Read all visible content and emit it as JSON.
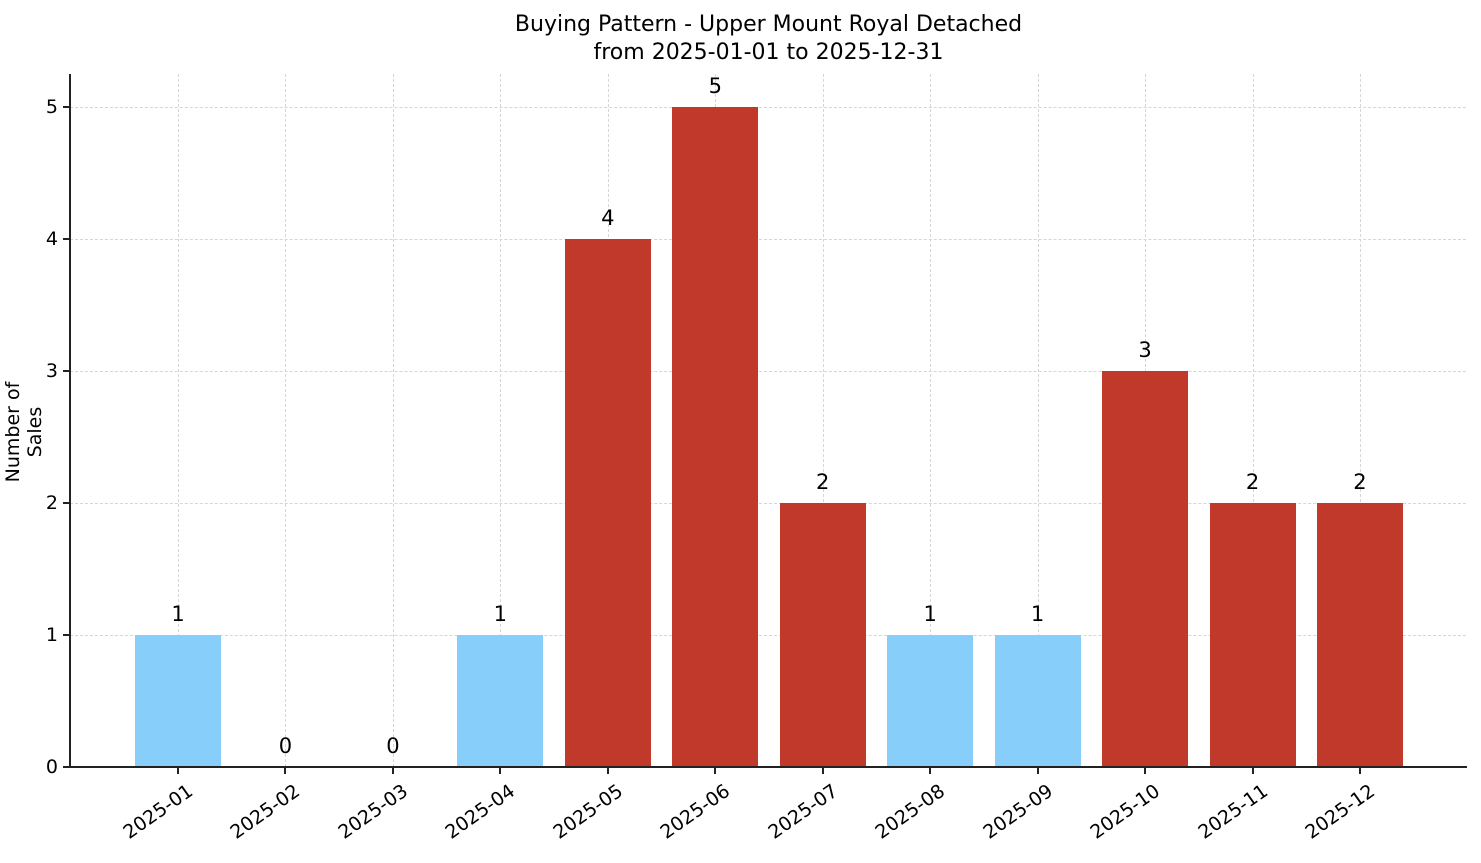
{
  "chart_data": {
    "type": "bar",
    "title": "Buying Pattern - Upper Mount Royal Detached",
    "subtitle": "from 2025-01-01 to 2025-12-31",
    "xlabel": "",
    "ylabel": "Number of Sales",
    "categories": [
      "2025-01",
      "2025-02",
      "2025-03",
      "2025-04",
      "2025-05",
      "2025-06",
      "2025-07",
      "2025-08",
      "2025-09",
      "2025-10",
      "2025-11",
      "2025-12"
    ],
    "values": [
      1,
      0,
      0,
      1,
      4,
      5,
      2,
      1,
      1,
      3,
      2,
      2
    ],
    "bar_colors": [
      "#87CEFA",
      "#87CEFA",
      "#87CEFA",
      "#87CEFA",
      "#C0392B",
      "#C0392B",
      "#C0392B",
      "#87CEFA",
      "#87CEFA",
      "#C0392B",
      "#C0392B",
      "#C0392B"
    ],
    "color_legend": {
      "low": "#87CEFA",
      "high": "#C0392B"
    },
    "yticks": [
      0,
      1,
      2,
      3,
      4,
      5
    ],
    "ylim": [
      0,
      5.25
    ],
    "grid": true,
    "legend": null,
    "data_labels": [
      "1",
      "0",
      "0",
      "1",
      "4",
      "5",
      "2",
      "1",
      "1",
      "3",
      "2",
      "2"
    ]
  }
}
